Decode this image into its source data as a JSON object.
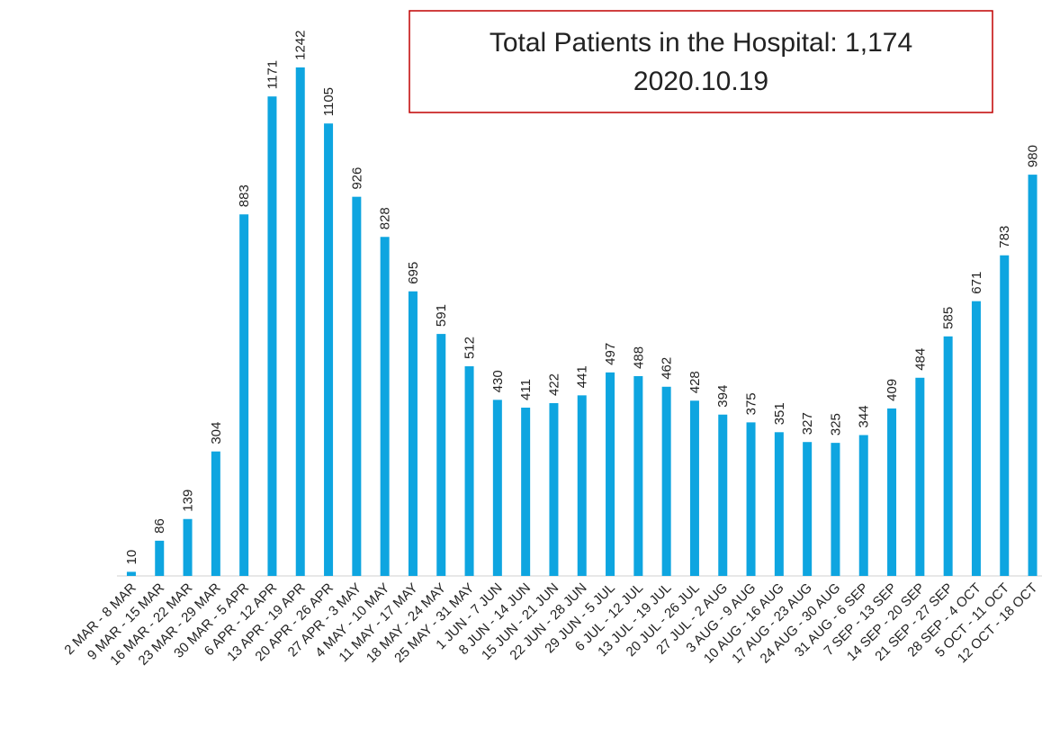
{
  "chart_data": {
    "type": "bar",
    "title": "Total Patients in the Hospital: 1,174",
    "subtitle": "2020.10.19",
    "categories": [
      "2 MAR - 8 MAR",
      "9 MAR - 15 MAR",
      "16 MAR - 22 MAR",
      "23 MAR - 29 MAR",
      "30 MAR - 5 APR",
      "6 APR - 12 APR",
      "13 APR - 19 APR",
      "20 APR - 26 APR",
      "27 APR - 3 MAY",
      "4 MAY - 10 MAY",
      "11 MAY - 17 MAY",
      "18 MAY - 24 MAY",
      "25 MAY - 31 MAY",
      "1 JUN - 7 JUN",
      "8 JUN - 14 JUN",
      "15 JUN - 21 JUN",
      "22 JUN - 28 JUN",
      "29 JUN - 5 JUL",
      "6 JUL - 12 JUL",
      "13 JUL - 19 JUL",
      "20 JUL - 26 JUL",
      "27 JUL - 2 AUG",
      "3 AUG - 9 AUG",
      "10 AUG - 16 AUG",
      "17 AUG - 23 AUG",
      "24 AUG - 30 AUG",
      "31 AUG - 6 SEP",
      "7 SEP - 13 SEP",
      "14 SEP - 20 SEP",
      "21 SEP - 27 SEP",
      "28 SEP - 4 OCT",
      "5 OCT - 11 OCT",
      "12 OCT - 18 OCT"
    ],
    "values": [
      10,
      86,
      139,
      304,
      883,
      1171,
      1242,
      1105,
      926,
      828,
      695,
      591,
      512,
      430,
      411,
      422,
      441,
      497,
      488,
      462,
      428,
      394,
      375,
      351,
      327,
      325,
      344,
      409,
      484,
      585,
      671,
      783,
      980
    ],
    "color": "#0ea5e0",
    "ylim": [
      0,
      1400
    ]
  }
}
